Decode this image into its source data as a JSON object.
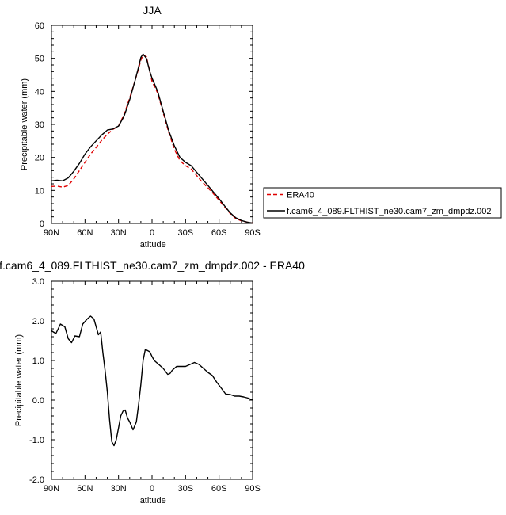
{
  "chart_data": [
    {
      "type": "line",
      "title": "JJA",
      "xlabel": "latitude",
      "ylabel": "Precipitable water (mm)",
      "xlim": [
        90,
        -90
      ],
      "ylim": [
        0,
        60
      ],
      "x_ticks": [
        90,
        60,
        30,
        0,
        -30,
        -60,
        -90
      ],
      "x_tick_labels": [
        "90N",
        "60N",
        "30N",
        "0",
        "30S",
        "60S",
        "90S"
      ],
      "y_ticks": [
        0,
        10,
        20,
        30,
        40,
        50,
        60
      ],
      "y_tick_labels": [
        "0",
        "10",
        "20",
        "30",
        "40",
        "50",
        "60"
      ],
      "grid": false,
      "legend": "right",
      "series": [
        {
          "name": "ERA40",
          "color": "#e00000",
          "dash": "dashed",
          "x": [
            90,
            85,
            80,
            75,
            70,
            65,
            60,
            55,
            50,
            45,
            40,
            35,
            30,
            25,
            20,
            15,
            12,
            10,
            8,
            5,
            2,
            0,
            -5,
            -10,
            -15,
            -20,
            -25,
            -30,
            -35,
            -40,
            -45,
            -50,
            -55,
            -60,
            -65,
            -70,
            -75,
            -80,
            -85,
            -90
          ],
          "values": [
            11.2,
            11.3,
            11.0,
            11.5,
            13.5,
            16.0,
            18.5,
            21.0,
            23.0,
            25.2,
            27.0,
            28.5,
            29.5,
            33.0,
            38.0,
            43.5,
            47.0,
            49.5,
            51.0,
            50.5,
            46.0,
            43.0,
            39.5,
            33.5,
            27.5,
            22.5,
            19.0,
            17.5,
            16.5,
            14.5,
            12.5,
            10.8,
            9.0,
            7.0,
            5.0,
            3.0,
            1.5,
            0.8,
            0.4,
            0.1
          ]
        },
        {
          "name": "f.cam6_4_089.FLTHIST_ne30.cam7_zm_dmpdz.002",
          "color": "#000000",
          "dash": "solid",
          "x": [
            90,
            85,
            80,
            75,
            70,
            65,
            60,
            55,
            50,
            45,
            40,
            35,
            30,
            25,
            20,
            15,
            12,
            10,
            8,
            5,
            2,
            0,
            -5,
            -10,
            -15,
            -20,
            -25,
            -30,
            -35,
            -40,
            -45,
            -50,
            -55,
            -60,
            -65,
            -70,
            -75,
            -80,
            -85,
            -90
          ],
          "values": [
            12.9,
            13.1,
            12.9,
            13.8,
            15.8,
            18.2,
            21.0,
            23.2,
            25.0,
            26.8,
            28.3,
            28.6,
            29.5,
            32.5,
            37.5,
            43.5,
            47.5,
            50.3,
            51.3,
            50.0,
            46.0,
            44.0,
            40.0,
            34.0,
            28.0,
            23.5,
            20.0,
            18.5,
            17.5,
            15.5,
            13.5,
            11.5,
            9.5,
            7.5,
            5.3,
            3.2,
            1.7,
            0.9,
            0.4,
            0.1
          ]
        }
      ]
    },
    {
      "type": "line",
      "title": "f.cam6_4_089.FLTHIST_ne30.cam7_zm_dmpdz.002 - ERA40",
      "xlabel": "latitude",
      "ylabel": "Precipitable water (mm)",
      "xlim": [
        90,
        -90
      ],
      "ylim": [
        -2.0,
        3.0
      ],
      "x_ticks": [
        90,
        60,
        30,
        0,
        -30,
        -60,
        -90
      ],
      "x_tick_labels": [
        "90N",
        "60N",
        "30N",
        "0",
        "30S",
        "60S",
        "90S"
      ],
      "y_ticks": [
        -2.0,
        -1.0,
        0.0,
        1.0,
        2.0,
        3.0
      ],
      "y_tick_labels": [
        "-2.0",
        "-1.0",
        "0.0",
        "1.0",
        "2.0",
        "3.0"
      ],
      "grid": false,
      "series": [
        {
          "color": "#000000",
          "dash": "solid",
          "x": [
            90,
            86,
            84,
            82,
            78,
            75,
            72,
            69,
            65,
            62,
            58,
            55,
            52,
            48,
            46,
            44,
            42,
            40,
            38,
            36,
            34,
            32,
            30,
            28,
            26,
            24,
            22,
            20,
            17,
            14,
            12,
            10,
            8,
            6,
            4,
            2,
            0,
            -2,
            -4,
            -6,
            -10,
            -14,
            -16,
            -18,
            -20,
            -22,
            -26,
            -30,
            -34,
            -38,
            -42,
            -46,
            -50,
            -54,
            -58,
            -62,
            -66,
            -70,
            -74,
            -78,
            -82,
            -86,
            -90
          ],
          "values": [
            1.75,
            1.68,
            1.8,
            1.92,
            1.85,
            1.55,
            1.45,
            1.62,
            1.6,
            1.92,
            2.05,
            2.12,
            2.05,
            1.65,
            1.72,
            1.2,
            0.75,
            0.2,
            -0.5,
            -1.05,
            -1.15,
            -1.0,
            -0.7,
            -0.4,
            -0.28,
            -0.25,
            -0.45,
            -0.55,
            -0.75,
            -0.55,
            -0.1,
            0.4,
            1.0,
            1.28,
            1.25,
            1.22,
            1.1,
            1.0,
            0.95,
            0.9,
            0.8,
            0.65,
            0.67,
            0.75,
            0.8,
            0.85,
            0.85,
            0.85,
            0.9,
            0.95,
            0.9,
            0.8,
            0.7,
            0.62,
            0.45,
            0.3,
            0.15,
            0.14,
            0.1,
            0.1,
            0.08,
            0.05,
            0.0
          ]
        }
      ]
    }
  ]
}
